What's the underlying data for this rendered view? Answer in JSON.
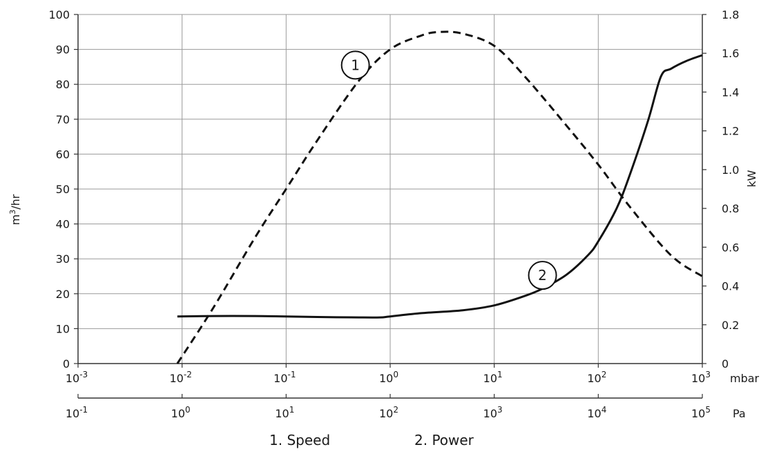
{
  "chart_data": {
    "type": "line",
    "xscale": "log",
    "x_axis_primary": {
      "unit": "mbar",
      "ticks": [
        {
          "base": "10",
          "exp": "-3"
        },
        {
          "base": "10",
          "exp": "-2"
        },
        {
          "base": "10",
          "exp": "-1"
        },
        {
          "base": "10",
          "exp": "0"
        },
        {
          "base": "10",
          "exp": "1"
        },
        {
          "base": "10",
          "exp": "2"
        },
        {
          "base": "10",
          "exp": "3"
        }
      ],
      "range": [
        0.001,
        1000
      ]
    },
    "x_axis_secondary": {
      "unit": "Pa",
      "ticks": [
        {
          "base": "10",
          "exp": "-1"
        },
        {
          "base": "10",
          "exp": "0"
        },
        {
          "base": "10",
          "exp": "1"
        },
        {
          "base": "10",
          "exp": "2"
        },
        {
          "base": "10",
          "exp": "3"
        },
        {
          "base": "10",
          "exp": "4"
        },
        {
          "base": "10",
          "exp": "5"
        }
      ],
      "range": [
        0.1,
        100000
      ]
    },
    "y_left": {
      "label_base": "m",
      "label_sup": "3",
      "label_rest": "/hr",
      "ticks": [
        "0",
        "10",
        "20",
        "30",
        "40",
        "50",
        "60",
        "70",
        "80",
        "90",
        "100"
      ],
      "range": [
        0,
        100
      ]
    },
    "y_right": {
      "label": "kW",
      "ticks": [
        "0",
        "0.2",
        "0.4",
        "0.6",
        "0.8",
        "1.0",
        "1.2",
        "1.4",
        "1.6",
        "1.8"
      ],
      "range": [
        0,
        1.8
      ]
    },
    "grid": true,
    "series": [
      {
        "name": "Speed",
        "marker": "1",
        "axis": "left",
        "style": "dashed",
        "x": [
          0.009,
          0.02,
          0.05,
          0.1,
          0.2,
          0.5,
          1,
          2,
          3,
          5,
          10,
          20,
          50,
          100,
          200,
          500,
          1000
        ],
        "y": [
          0,
          16,
          36,
          50,
          64,
          81,
          90,
          94,
          95,
          94.5,
          91,
          82,
          68,
          57,
          45,
          31,
          25
        ]
      },
      {
        "name": "Power",
        "marker": "2",
        "axis": "right",
        "style": "solid",
        "x": [
          0.009,
          0.02,
          0.05,
          0.1,
          0.2,
          0.5,
          0.8,
          1,
          2,
          5,
          10,
          20,
          30,
          50,
          80,
          100,
          150,
          200,
          300,
          400,
          500,
          700,
          1000
        ],
        "y": [
          0.243,
          0.245,
          0.245,
          0.243,
          0.24,
          0.238,
          0.238,
          0.243,
          0.26,
          0.275,
          0.3,
          0.35,
          0.39,
          0.46,
          0.56,
          0.63,
          0.8,
          0.97,
          1.25,
          1.48,
          1.52,
          1.56,
          1.59
        ]
      }
    ]
  },
  "legend": [
    {
      "text": "1.  Speed"
    },
    {
      "text": "2.  Power"
    }
  ]
}
